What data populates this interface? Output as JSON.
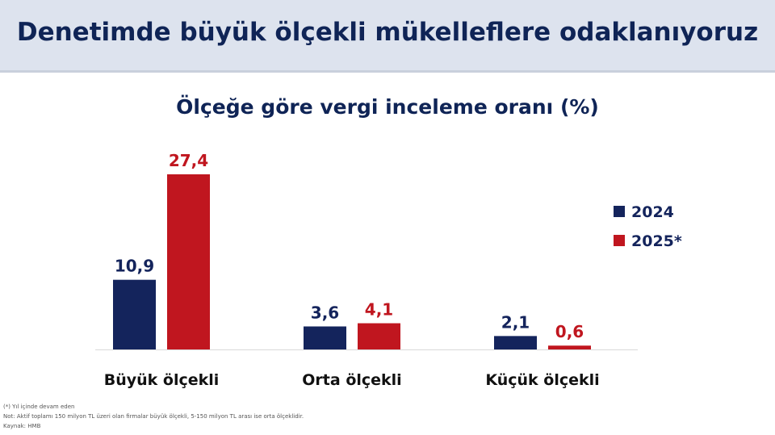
{
  "header": {
    "title": "Denetimde büyük ölçekli mükelleflere odaklanıyoruz"
  },
  "chart_data": {
    "type": "bar",
    "title": "Ölçeğe göre vergi inceleme oranı (%)",
    "categories": [
      "Büyük ölçekli",
      "Orta ölçekli",
      "Küçük ölçekli"
    ],
    "series": [
      {
        "name": "2024",
        "values": [
          10.9,
          3.6,
          2.1
        ],
        "labels": [
          "10,9",
          "3,6",
          "2,1"
        ],
        "color": "#14245c"
      },
      {
        "name": "2025*",
        "values": [
          27.4,
          4.1,
          0.6
        ],
        "labels": [
          "27,4",
          "4,1",
          "0,6"
        ],
        "color": "#c0161f"
      }
    ],
    "ylim": [
      0,
      27.4
    ],
    "grid": false,
    "legend": "right"
  },
  "footnotes": [
    "(*) Yıl içinde devam eden",
    "Not: Aktif toplamı 150 milyon TL üzeri olan firmalar büyük ölçekli, 5-150 milyon TL arası ise orta ölçeklidir.",
    "Kaynak: HMB"
  ]
}
